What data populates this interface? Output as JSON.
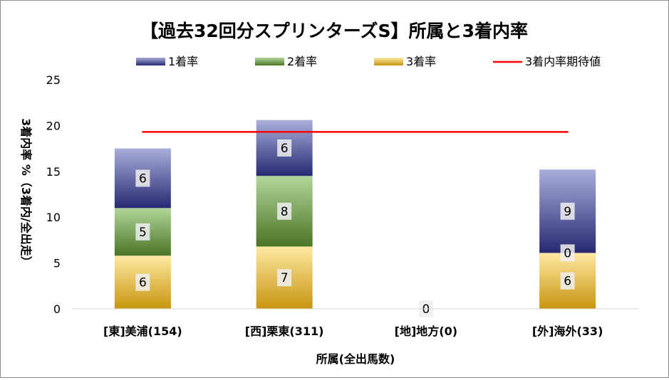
{
  "chart_data": {
    "type": "bar",
    "stacked": true,
    "title": "【過去32回分スプリンターズS】所属と3着内率",
    "xlabel": "所属(全出馬数)",
    "ylabel": "3着内率 %（3着内/全出走）",
    "ylim": [
      0,
      25
    ],
    "yticks": [
      "0",
      "5",
      "10",
      "15",
      "20",
      "25"
    ],
    "grid": false,
    "legend": "top",
    "categories": [
      "[東]美浦(154)",
      "[西]栗東(311)",
      "[地]地方(0)",
      "[外]海外(33)"
    ],
    "series": [
      {
        "name": "3着率",
        "values": [
          5.8,
          6.8,
          0,
          6.1
        ],
        "labels": [
          "6",
          "7",
          "0",
          "6"
        ],
        "color": "#d4a21c"
      },
      {
        "name": "2着率",
        "values": [
          5.2,
          7.7,
          0,
          0
        ],
        "labels": [
          "5",
          "8",
          "",
          "0"
        ],
        "color": "#4e7a2a"
      },
      {
        "name": "1着率",
        "values": [
          6.5,
          6.1,
          0,
          9.1
        ],
        "labels": [
          "6",
          "6",
          "",
          "9"
        ],
        "color": "#2b2f7a"
      }
    ],
    "expected_line": {
      "name": "3着内率期待値",
      "value": 19.3,
      "color": "#ff0000"
    }
  }
}
